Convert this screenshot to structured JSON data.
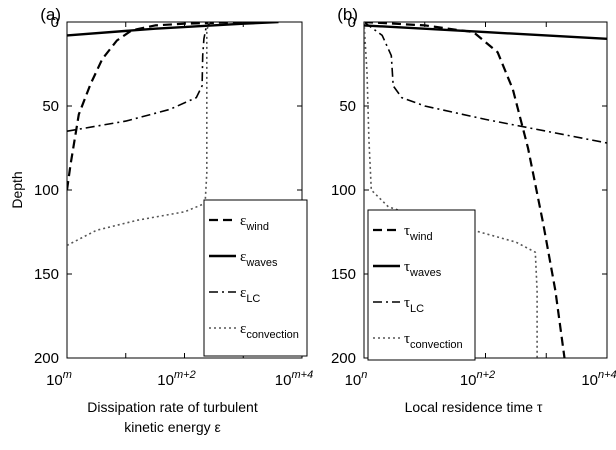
{
  "ylabel": "Depth",
  "chart_data": [
    {
      "type": "line",
      "panel_label": "(a)",
      "xlabel_lines": [
        "Dissipation rate of turbulent",
        "kinetic energy ε"
      ],
      "x_scale": "log",
      "x_tick_labels": [
        {
          "base": "10",
          "exp": "m"
        },
        {
          "base": "10",
          "exp": "m+2"
        },
        {
          "base": "10",
          "exp": "m+4"
        }
      ],
      "ylabel": "Depth",
      "ylim": [
        0,
        200
      ],
      "y_reversed": true,
      "y_ticks": [
        0,
        50,
        100,
        150,
        200
      ],
      "legend_position": "bottom-right",
      "series": [
        {
          "name": "ε",
          "name_sub": "wind",
          "style": "dashed",
          "points": [
            [
              0.0,
              100
            ],
            [
              0.06,
              85
            ],
            [
              0.2,
              55
            ],
            [
              0.4,
              37
            ],
            [
              0.6,
              22
            ],
            [
              0.85,
              11
            ],
            [
              1.1,
              5
            ],
            [
              1.5,
              2
            ],
            [
              2.0,
              1
            ],
            [
              3.0,
              0
            ]
          ]
        },
        {
          "name": "ε",
          "name_sub": "waves",
          "style": "solid",
          "points": [
            [
              0.0,
              8
            ],
            [
              1.5,
              4
            ],
            [
              3.0,
              1
            ],
            [
              3.6,
              0
            ]
          ]
        },
        {
          "name": "ε",
          "name_sub": "LC",
          "style": "dashdot",
          "points": [
            [
              0.0,
              65
            ],
            [
              1.0,
              59
            ],
            [
              1.75,
              52
            ],
            [
              2.2,
              45
            ],
            [
              2.3,
              38
            ],
            [
              2.31,
              20
            ],
            [
              2.33,
              10
            ],
            [
              2.37,
              3
            ],
            [
              2.45,
              0
            ]
          ]
        },
        {
          "name": "ε",
          "name_sub": "convection",
          "style": "dotted",
          "points": [
            [
              0.0,
              133
            ],
            [
              0.5,
              124
            ],
            [
              1.2,
              118
            ],
            [
              2.0,
              113
            ],
            [
              2.35,
              108
            ],
            [
              2.38,
              90
            ],
            [
              2.38,
              40
            ],
            [
              2.38,
              5
            ],
            [
              2.42,
              0
            ]
          ]
        }
      ]
    },
    {
      "type": "line",
      "panel_label": "(b)",
      "xlabel_lines": [
        "Local residence time τ"
      ],
      "x_scale": "log",
      "x_tick_labels": [
        {
          "base": "10",
          "exp": "n"
        },
        {
          "base": "10",
          "exp": "n+2"
        },
        {
          "base": "10",
          "exp": "n+4"
        }
      ],
      "ylim": [
        0,
        200
      ],
      "y_reversed": true,
      "y_ticks": [
        0,
        50,
        100,
        150,
        200
      ],
      "legend_position": "middle-left",
      "series": [
        {
          "name": "τ",
          "name_sub": "wind",
          "style": "dashed",
          "points": [
            [
              0.0,
              0
            ],
            [
              1.0,
              2
            ],
            [
              1.8,
              6
            ],
            [
              2.2,
              18
            ],
            [
              2.45,
              40
            ],
            [
              2.7,
              75
            ],
            [
              2.95,
              120
            ],
            [
              3.15,
              160
            ],
            [
              3.3,
              200
            ]
          ]
        },
        {
          "name": "τ",
          "name_sub": "waves",
          "style": "solid",
          "points": [
            [
              0.0,
              2
            ],
            [
              2.0,
              6
            ],
            [
              4.0,
              10
            ]
          ]
        },
        {
          "name": "τ",
          "name_sub": "LC",
          "style": "dashdot",
          "points": [
            [
              0.0,
              0
            ],
            [
              0.3,
              8
            ],
            [
              0.45,
              20
            ],
            [
              0.48,
              38
            ],
            [
              0.62,
              45
            ],
            [
              1.0,
              50
            ],
            [
              2.0,
              58
            ],
            [
              3.0,
              65
            ],
            [
              4.0,
              72
            ]
          ]
        },
        {
          "name": "τ",
          "name_sub": "convection",
          "style": "dotted",
          "points": [
            [
              0.0,
              0
            ],
            [
              0.05,
              30
            ],
            [
              0.08,
              70
            ],
            [
              0.12,
              100
            ],
            [
              0.4,
              110
            ],
            [
              1.0,
              117
            ],
            [
              1.8,
              124
            ],
            [
              2.5,
              131
            ],
            [
              2.82,
              137
            ],
            [
              2.85,
              160
            ],
            [
              2.85,
              200
            ]
          ]
        }
      ]
    }
  ]
}
